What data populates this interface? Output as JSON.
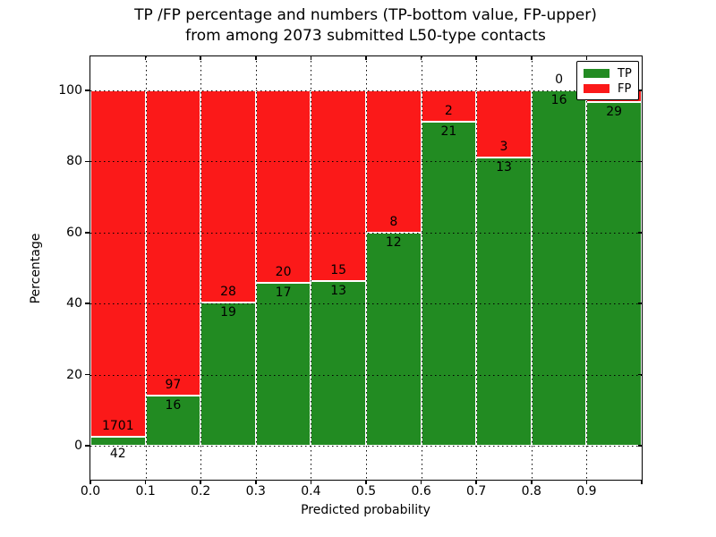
{
  "title": {
    "line1": "TP /FP percentage and numbers (TP-bottom value, FP-upper)",
    "line2": "from among 2073 submitted L50-type contacts"
  },
  "axes": {
    "xlabel": "Predicted probability",
    "ylabel": "Percentage",
    "x_tick_labels": [
      "0.0",
      "0.1",
      "0.2",
      "0.3",
      "0.4",
      "0.5",
      "0.6",
      "0.7",
      "0.8",
      "0.9"
    ],
    "y_tick_values": [
      0,
      20,
      40,
      60,
      80,
      100
    ],
    "y_tick_labels": [
      "0",
      "20",
      "40",
      "60",
      "80",
      "100"
    ]
  },
  "legend": {
    "items": [
      {
        "label": "TP",
        "color": "#228b22"
      },
      {
        "label": "FP",
        "color": "#fb1919"
      }
    ],
    "position": "upper right"
  },
  "colors": {
    "tp": "#228b22",
    "fp": "#fb1919",
    "grid": "#000000",
    "background": "#ffffff"
  },
  "chart_data": {
    "type": "bar",
    "stacked": true,
    "title": "TP /FP percentage and numbers (TP-bottom value, FP-upper) from among 2073 submitted L50-type contacts",
    "xlabel": "Predicted probability",
    "ylabel": "Percentage",
    "categories": [
      "0.0-0.1",
      "0.1-0.2",
      "0.2-0.3",
      "0.3-0.4",
      "0.4-0.5",
      "0.5-0.6",
      "0.6-0.7",
      "0.7-0.8",
      "0.8-0.9",
      "0.9-1.0"
    ],
    "series": [
      {
        "name": "TP",
        "counts": [
          42,
          16,
          19,
          17,
          13,
          12,
          21,
          13,
          16,
          29
        ],
        "pct": [
          2.4,
          14.2,
          40.4,
          45.9,
          46.4,
          60.0,
          91.3,
          81.2,
          100.0,
          96.7
        ]
      },
      {
        "name": "FP",
        "counts": [
          1701,
          97,
          28,
          20,
          15,
          8,
          2,
          3,
          0,
          null
        ],
        "pct": [
          97.6,
          85.8,
          59.6,
          54.1,
          53.6,
          40.0,
          8.7,
          18.8,
          0.0,
          3.3
        ]
      }
    ],
    "bar_labels": {
      "tp": [
        "42",
        "16",
        "19",
        "17",
        "13",
        "12",
        "21",
        "13",
        "16",
        "29"
      ],
      "fp": [
        "1701",
        "97",
        "28",
        "20",
        "15",
        "8",
        "2",
        "3",
        "0",
        ""
      ]
    },
    "xlim": [
      0.0,
      1.0
    ],
    "ylim": [
      -10,
      110
    ],
    "grid": true,
    "grid_style": "dotted",
    "legend_position": "upper right"
  }
}
